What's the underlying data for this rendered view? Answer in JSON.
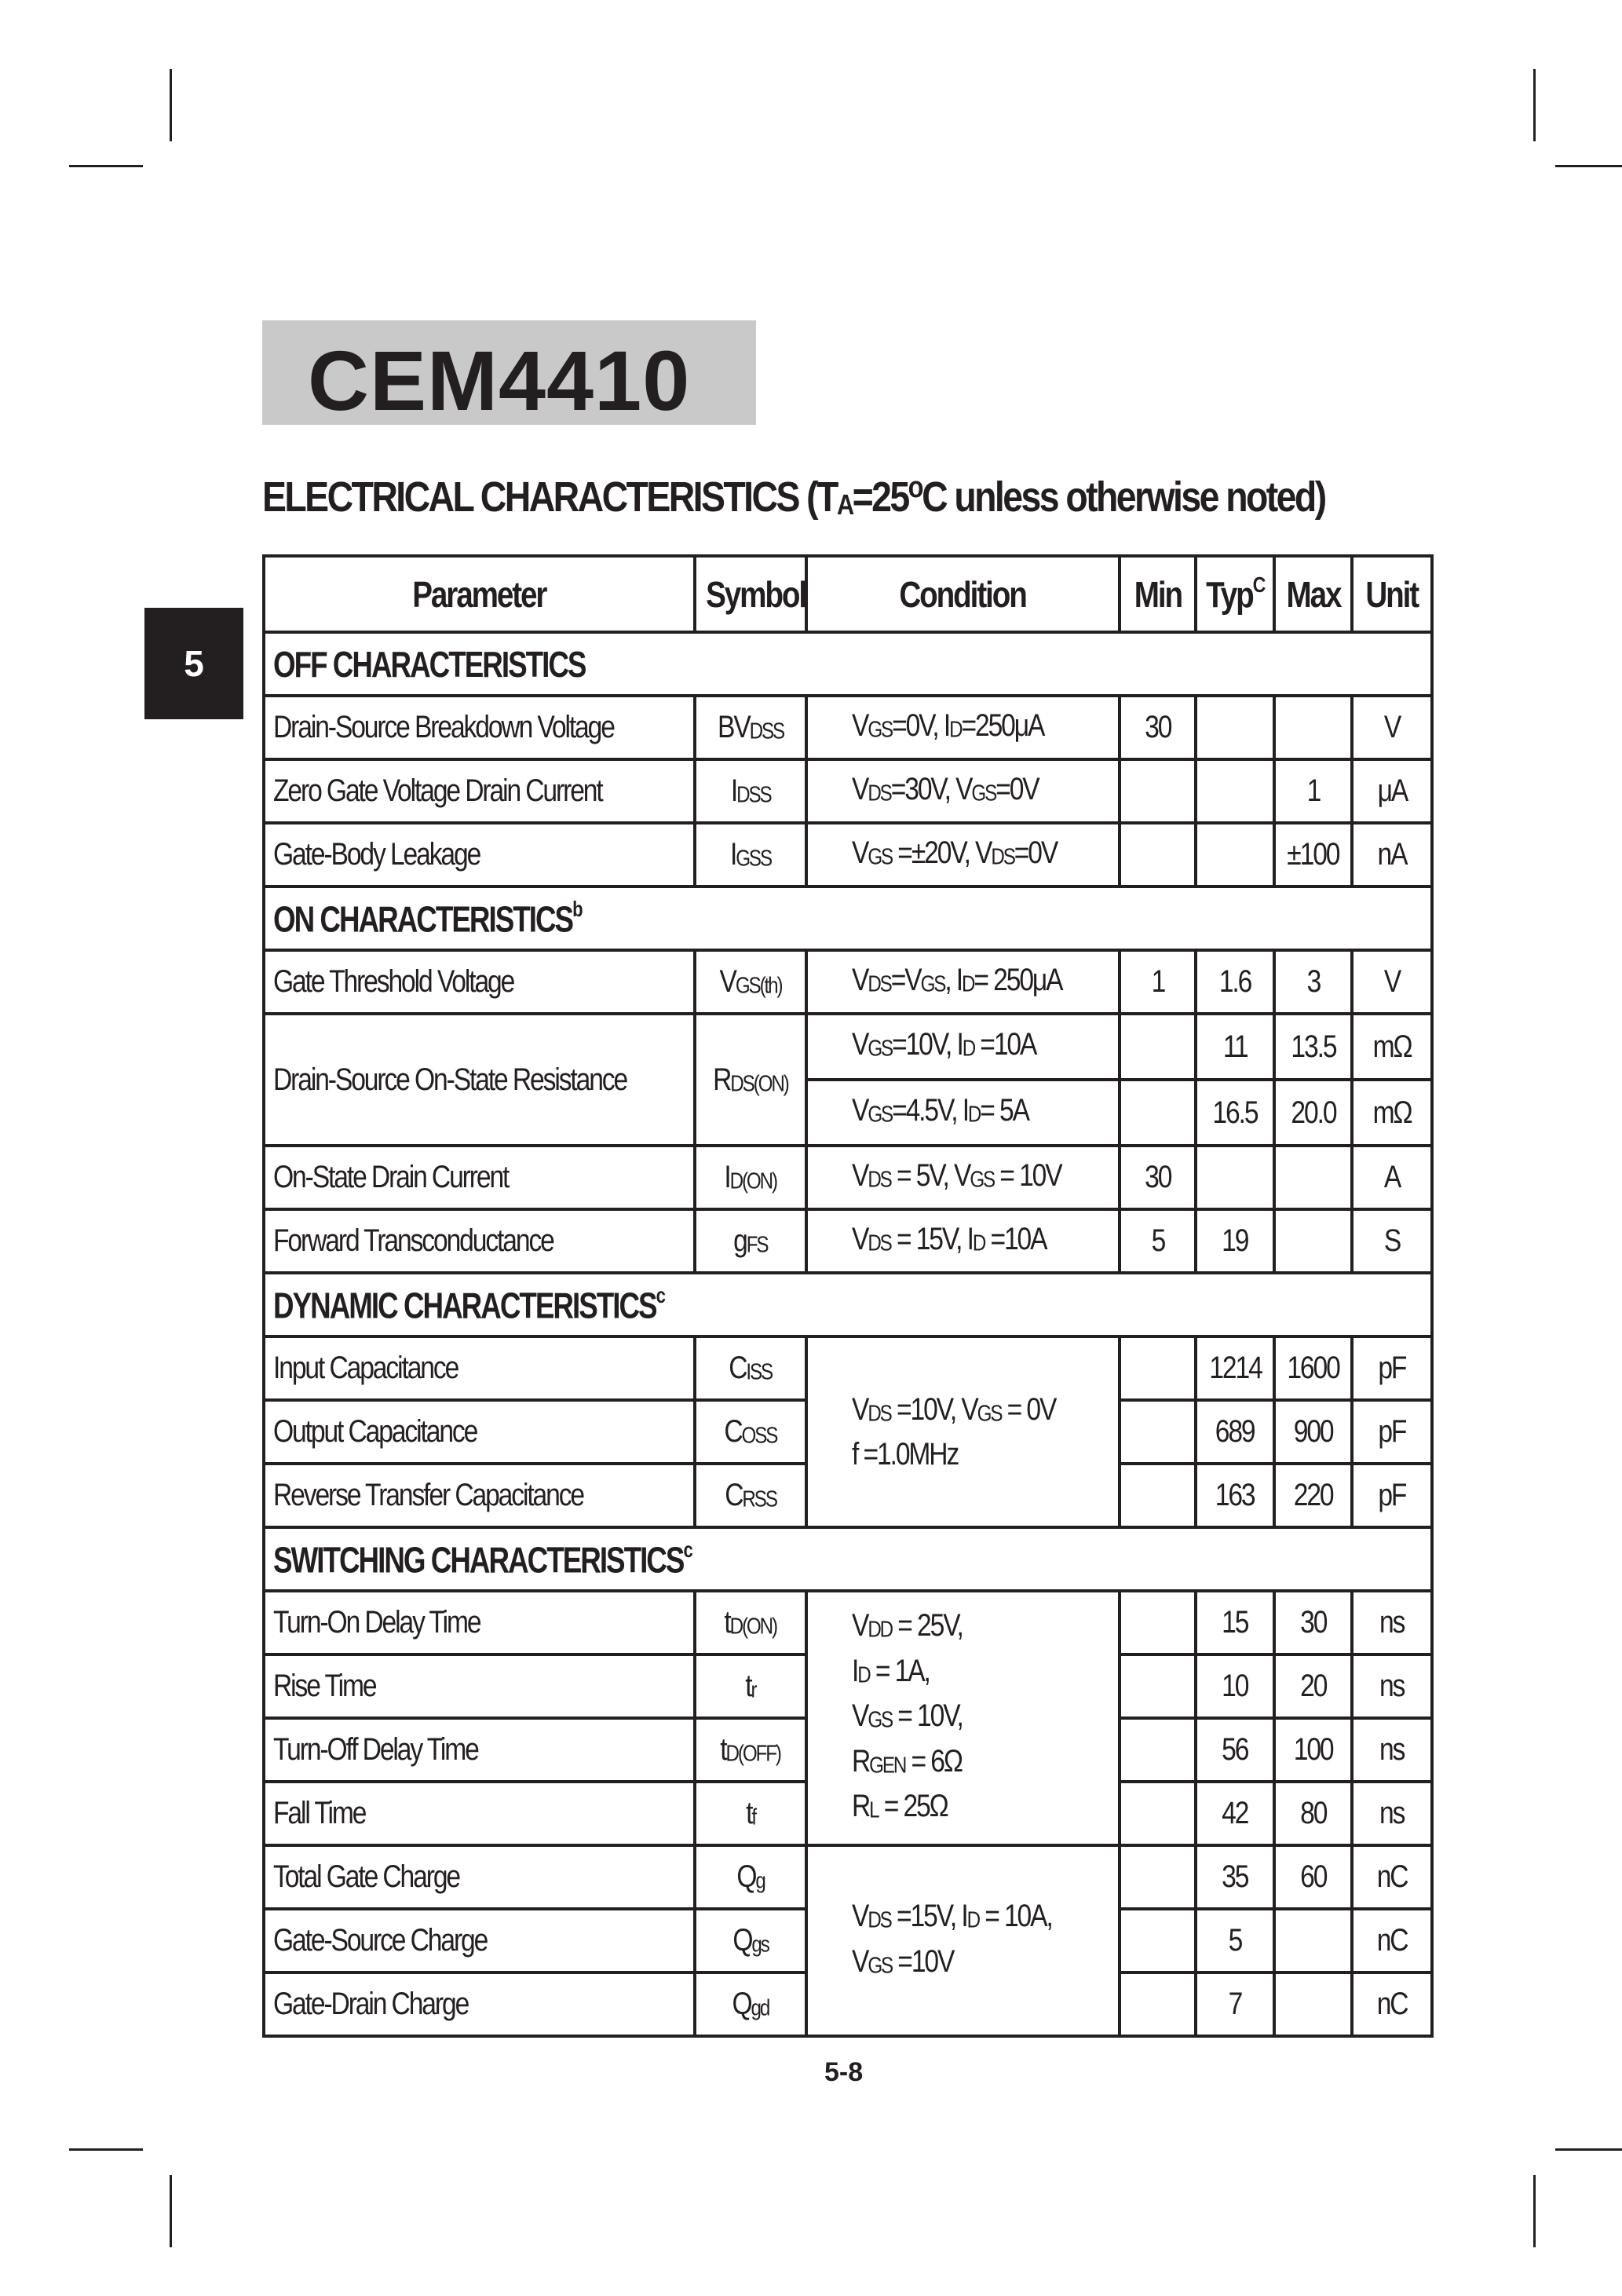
{
  "part_number": "CEM4410",
  "section_tab": "5",
  "page_number": "5-8",
  "heading": [
    "ELECTRICAL  CHARACTERISTICS   (T",
    {
      "sub": "A"
    },
    "=25",
    {
      "sup": "o"
    },
    "C  unless otherwise noted)"
  ],
  "table": {
    "headers": {
      "parameter": "Parameter",
      "symbol": "Symbol",
      "condition": "Condition",
      "min": "Min",
      "typ": "Typ",
      "typ_note": "C",
      "max": "Max",
      "unit": "Unit"
    },
    "sections": [
      {
        "title": "OFF CHARACTERISTICS",
        "note": "",
        "rows": [
          {
            "parameter": "Drain-Source Breakdown Voltage",
            "symbol": [
              "BV",
              {
                "sub": "DSS"
              }
            ],
            "condition": [
              [
                "V",
                {
                  "sub": "GS"
                },
                "=0V, I",
                {
                  "sub": "D"
                },
                "=250μA"
              ]
            ],
            "min": "30",
            "typ": "",
            "max": "",
            "unit": "V"
          },
          {
            "parameter": "Zero Gate Voltage Drain Current",
            "symbol": [
              "I",
              {
                "sub": "DSS"
              }
            ],
            "condition": [
              [
                "V",
                {
                  "sub": "DS"
                },
                "=30V, V",
                {
                  "sub": "GS"
                },
                "=0V"
              ]
            ],
            "min": "",
            "typ": "",
            "max": "1",
            "unit": "μA"
          },
          {
            "parameter": "Gate-Body Leakage",
            "symbol": [
              "I",
              {
                "sub": "GSS"
              }
            ],
            "condition": [
              [
                "V",
                {
                  "sub": "GS"
                },
                " =±20V, V",
                {
                  "sub": "DS"
                },
                "=0V"
              ]
            ],
            "min": "",
            "typ": "",
            "max": "±100",
            "unit": "nA"
          }
        ]
      },
      {
        "title": "ON CHARACTERISTICS",
        "note": "b",
        "rows": [
          {
            "parameter": "Gate Threshold Voltage",
            "symbol": [
              "V",
              {
                "sub": "GS(th)"
              }
            ],
            "condition": [
              [
                "V",
                {
                  "sub": "DS"
                },
                "=V",
                {
                  "sub": "GS"
                },
                ", I",
                {
                  "sub": "D"
                },
                "= 250μA"
              ]
            ],
            "min": "1",
            "typ": "1.6",
            "max": "3",
            "unit": "V"
          },
          {
            "parameter": "Drain-Source On-State Resistance",
            "symbol": [
              "R",
              {
                "sub": "DS(ON)"
              }
            ],
            "span": 2,
            "condition": [
              [
                "V",
                {
                  "sub": "GS"
                },
                "=10V, I",
                {
                  "sub": "D"
                },
                " =10A"
              ]
            ],
            "min": "",
            "typ": "11",
            "max": "13.5",
            "unit": "mΩ"
          },
          {
            "cont": true,
            "condition": [
              [
                "V",
                {
                  "sub": "GS"
                },
                "=4.5V, I",
                {
                  "sub": "D"
                },
                "= 5A"
              ]
            ],
            "min": "",
            "typ": "16.5",
            "max": "20.0",
            "unit": "mΩ"
          },
          {
            "parameter": "On-State Drain Current",
            "symbol": [
              "I",
              {
                "sub": "D(ON)"
              }
            ],
            "condition": [
              [
                "V",
                {
                  "sub": "DS"
                },
                " = 5V, V",
                {
                  "sub": "GS"
                },
                " = 10V"
              ]
            ],
            "min": "30",
            "typ": "",
            "max": "",
            "unit": "A"
          },
          {
            "parameter": "Forward Transconductance",
            "symbol": [
              "g",
              {
                "sub": "FS"
              }
            ],
            "condition": [
              [
                "V",
                {
                  "sub": "DS"
                },
                " =  15V, I",
                {
                  "sub": "D"
                },
                " =10A"
              ]
            ],
            "min": "5",
            "typ": "19",
            "max": "",
            "unit": "S"
          }
        ]
      },
      {
        "title": "DYNAMIC CHARACTERISTICS",
        "note": "c",
        "rows": [
          {
            "parameter": "Input Capacitance",
            "symbol": [
              "C",
              {
                "sub": "ISS"
              }
            ],
            "condspan": 3,
            "condition": [
              [
                "V",
                {
                  "sub": "DS"
                },
                " =10V, V",
                {
                  "sub": "GS"
                },
                " = 0V"
              ],
              [
                "f =1.0MHz"
              ]
            ],
            "min": "",
            "typ": "1214",
            "max": "1600",
            "unit": "pF"
          },
          {
            "parameter": "Output Capacitance",
            "symbol": [
              "C",
              {
                "sub": "OSS"
              }
            ],
            "min": "",
            "typ": "689",
            "max": "900",
            "unit": "pF"
          },
          {
            "parameter": "Reverse Transfer Capacitance",
            "symbol": [
              "C",
              {
                "sub": "RSS"
              }
            ],
            "min": "",
            "typ": "163",
            "max": "220",
            "unit": "pF"
          }
        ]
      },
      {
        "title": "SWITCHING CHARACTERISTICS",
        "note": "c",
        "rows": [
          {
            "parameter": "Turn-On Delay Time",
            "symbol": [
              "t",
              {
                "sub": "D(ON)"
              }
            ],
            "condspan": 4,
            "condition": [
              [
                "V",
                {
                  "sub": "DD"
                },
                " = 25V,"
              ],
              [
                "I",
                {
                  "sub": "D"
                },
                " = 1A,"
              ],
              [
                "V",
                {
                  "sub": "GS"
                },
                " = 10V,"
              ],
              [
                "R",
                {
                  "sub": "GEN"
                },
                " = 6Ω"
              ],
              [
                "R",
                {
                  "sub": "L"
                },
                " = 25Ω"
              ]
            ],
            "min": "",
            "typ": "15",
            "max": "30",
            "unit": "ns"
          },
          {
            "parameter": "Rise Time",
            "symbol": [
              "t",
              {
                "sub": "r"
              }
            ],
            "min": "",
            "typ": "10",
            "max": "20",
            "unit": "ns"
          },
          {
            "parameter": "Turn-Off Delay Time",
            "symbol": [
              "t",
              {
                "sub": "D(OFF)"
              }
            ],
            "min": "",
            "typ": "56",
            "max": "100",
            "unit": "ns"
          },
          {
            "parameter": "Fall Time",
            "symbol": [
              "t",
              {
                "sub": "f"
              }
            ],
            "min": "",
            "typ": "42",
            "max": "80",
            "unit": "ns"
          },
          {
            "parameter": "Total Gate Charge",
            "symbol": [
              "Q",
              {
                "sub": "g"
              }
            ],
            "condspan": 3,
            "condition": [
              [
                "V",
                {
                  "sub": "DS"
                },
                " =15V, I",
                {
                  "sub": "D"
                },
                " = 10A,"
              ],
              [
                "V",
                {
                  "sub": "GS"
                },
                " =10V"
              ]
            ],
            "min": "",
            "typ": "35",
            "max": "60",
            "unit": "nC"
          },
          {
            "parameter": "Gate-Source Charge",
            "symbol": [
              "Q",
              {
                "sub": "gs"
              }
            ],
            "min": "",
            "typ": "5",
            "max": "",
            "unit": "nC"
          },
          {
            "parameter": "Gate-Drain Charge",
            "symbol": [
              "Q",
              {
                "sub": "gd"
              }
            ],
            "min": "",
            "typ": "7",
            "max": "",
            "unit": "nC"
          }
        ]
      }
    ]
  }
}
